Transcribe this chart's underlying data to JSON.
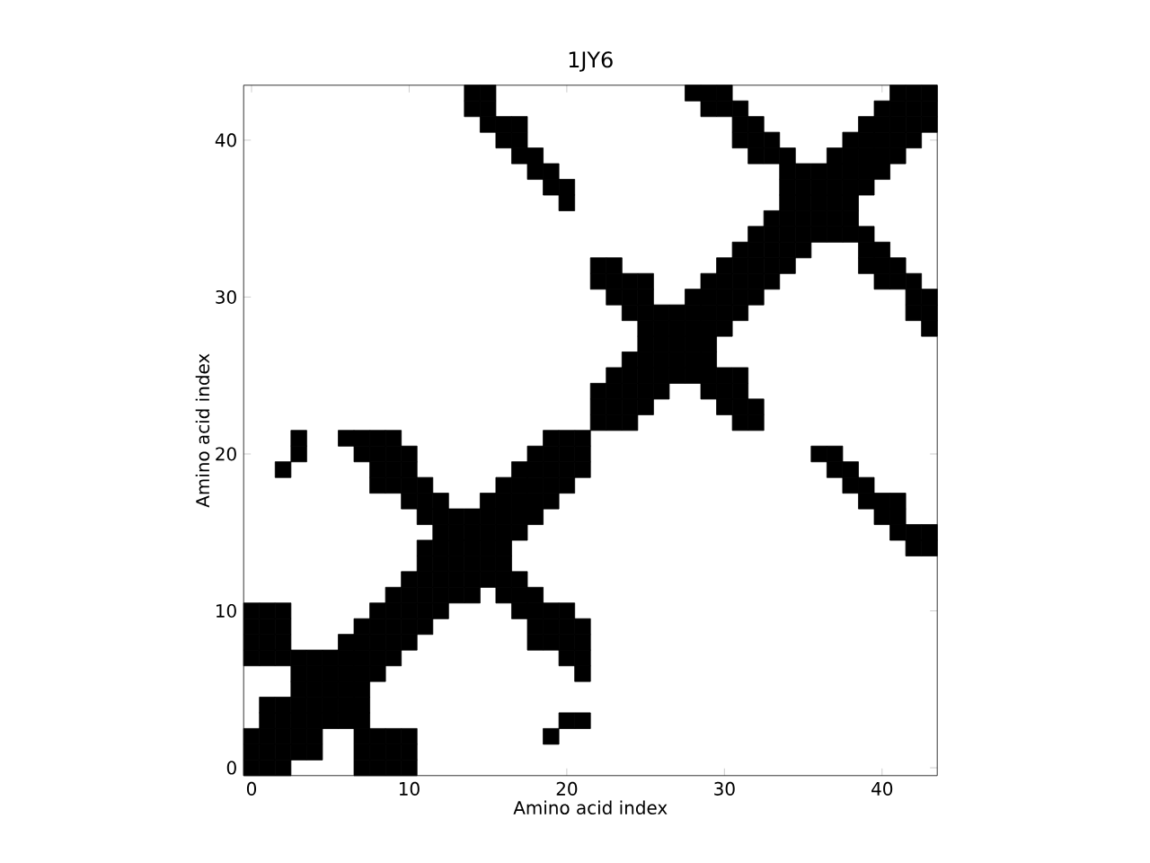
{
  "chart_data": {
    "type": "scatter",
    "title": "1JY6",
    "xlabel": "Amino acid index",
    "ylabel": "Amino acid index",
    "marker": "square",
    "xlim": [
      -0.5,
      43.5
    ],
    "ylim": [
      -0.5,
      43.5
    ],
    "xticks": [
      0,
      10,
      20,
      30,
      40
    ],
    "yticks": [
      0,
      10,
      20,
      30,
      40
    ],
    "grid": false,
    "series": [
      {
        "color": "#000000",
        "x": [
          0,
          1,
          2,
          7,
          8,
          9,
          10
        ],
        "values": [
          0,
          0,
          0,
          0,
          0,
          0,
          0
        ]
      },
      {
        "color": "#000000",
        "x": [
          0,
          1,
          2,
          3,
          4,
          7,
          8,
          9,
          10
        ],
        "values": [
          1,
          1,
          1,
          1,
          1,
          1,
          1,
          1,
          1
        ]
      },
      {
        "color": "#000000",
        "x": [
          0,
          1,
          2,
          3,
          4,
          7,
          8,
          9,
          10,
          19
        ],
        "values": [
          2,
          2,
          2,
          2,
          2,
          2,
          2,
          2,
          2,
          2
        ]
      },
      {
        "color": "#000000",
        "x": [
          1,
          2,
          3,
          4,
          5,
          6,
          7,
          20,
          21
        ],
        "values": [
          3,
          3,
          3,
          3,
          3,
          3,
          3,
          3,
          3
        ]
      },
      {
        "color": "#000000",
        "x": [
          1,
          2,
          3,
          4,
          5,
          6,
          7
        ],
        "values": [
          4,
          4,
          4,
          4,
          4,
          4,
          4
        ]
      },
      {
        "color": "#000000",
        "x": [
          3,
          4,
          5,
          6,
          7
        ],
        "values": [
          5,
          5,
          5,
          5,
          5
        ]
      },
      {
        "color": "#000000",
        "x": [
          3,
          4,
          5,
          6,
          7,
          8,
          21
        ],
        "values": [
          6,
          6,
          6,
          6,
          6,
          6,
          6
        ]
      },
      {
        "color": "#000000",
        "x": [
          0,
          1,
          2,
          3,
          4,
          5,
          6,
          7,
          8,
          9,
          20,
          21
        ],
        "values": [
          7,
          7,
          7,
          7,
          7,
          7,
          7,
          7,
          7,
          7,
          7,
          7
        ]
      },
      {
        "color": "#000000",
        "x": [
          0,
          1,
          2,
          6,
          7,
          8,
          9,
          10,
          18,
          19,
          20,
          21
        ],
        "values": [
          8,
          8,
          8,
          8,
          8,
          8,
          8,
          8,
          8,
          8,
          8,
          8
        ]
      },
      {
        "color": "#000000",
        "x": [
          0,
          1,
          2,
          7,
          8,
          9,
          10,
          11,
          18,
          19,
          20,
          21
        ],
        "values": [
          9,
          9,
          9,
          9,
          9,
          9,
          9,
          9,
          9,
          9,
          9,
          9
        ]
      },
      {
        "color": "#000000",
        "x": [
          0,
          1,
          2,
          8,
          9,
          10,
          11,
          12,
          17,
          18,
          19,
          20
        ],
        "values": [
          10,
          10,
          10,
          10,
          10,
          10,
          10,
          10,
          10,
          10,
          10,
          10
        ]
      },
      {
        "color": "#000000",
        "x": [
          9,
          10,
          11,
          12,
          13,
          14,
          16,
          17,
          18
        ],
        "values": [
          11,
          11,
          11,
          11,
          11,
          11,
          11,
          11,
          11
        ]
      },
      {
        "color": "#000000",
        "x": [
          10,
          11,
          12,
          13,
          14,
          15,
          16,
          17
        ],
        "values": [
          12,
          12,
          12,
          12,
          12,
          12,
          12,
          12
        ]
      },
      {
        "color": "#000000",
        "x": [
          11,
          12,
          13,
          14,
          15,
          16
        ],
        "values": [
          13,
          13,
          13,
          13,
          13,
          13
        ]
      },
      {
        "color": "#000000",
        "x": [
          11,
          12,
          13,
          14,
          15,
          16,
          42,
          43
        ],
        "values": [
          14,
          14,
          14,
          14,
          14,
          14,
          14,
          14
        ]
      },
      {
        "color": "#000000",
        "x": [
          12,
          13,
          14,
          15,
          16,
          17,
          41,
          42,
          43
        ],
        "values": [
          15,
          15,
          15,
          15,
          15,
          15,
          15,
          15,
          15
        ]
      },
      {
        "color": "#000000",
        "x": [
          11,
          12,
          13,
          14,
          15,
          16,
          17,
          18,
          40,
          41
        ],
        "values": [
          16,
          16,
          16,
          16,
          16,
          16,
          16,
          16,
          16,
          16
        ]
      },
      {
        "color": "#000000",
        "x": [
          10,
          11,
          12,
          15,
          16,
          17,
          18,
          19,
          39,
          40,
          41
        ],
        "values": [
          17,
          17,
          17,
          17,
          17,
          17,
          17,
          17,
          17,
          17,
          17
        ]
      },
      {
        "color": "#000000",
        "x": [
          8,
          9,
          10,
          11,
          16,
          17,
          18,
          19,
          20,
          38,
          39
        ],
        "values": [
          18,
          18,
          18,
          18,
          18,
          18,
          18,
          18,
          18,
          18,
          18
        ]
      },
      {
        "color": "#000000",
        "x": [
          2,
          8,
          9,
          10,
          17,
          18,
          19,
          20,
          21,
          37,
          38
        ],
        "values": [
          19,
          19,
          19,
          19,
          19,
          19,
          19,
          19,
          19,
          19,
          19
        ]
      },
      {
        "color": "#000000",
        "x": [
          3,
          7,
          8,
          9,
          10,
          18,
          19,
          20,
          21,
          36,
          37
        ],
        "values": [
          20,
          20,
          20,
          20,
          20,
          20,
          20,
          20,
          20,
          20,
          20
        ]
      },
      {
        "color": "#000000",
        "x": [
          3,
          6,
          7,
          8,
          9,
          19,
          20,
          21
        ],
        "values": [
          21,
          21,
          21,
          21,
          21,
          21,
          21,
          21
        ]
      },
      {
        "color": "#000000",
        "x": [
          22,
          23,
          24,
          31,
          32
        ],
        "values": [
          22,
          22,
          22,
          22,
          22
        ]
      },
      {
        "color": "#000000",
        "x": [
          22,
          23,
          24,
          25,
          30,
          31,
          32
        ],
        "values": [
          23,
          23,
          23,
          23,
          23,
          23,
          23
        ]
      },
      {
        "color": "#000000",
        "x": [
          22,
          23,
          24,
          25,
          26,
          29,
          30,
          31
        ],
        "values": [
          24,
          24,
          24,
          24,
          24,
          24,
          24,
          24
        ]
      },
      {
        "color": "#000000",
        "x": [
          23,
          24,
          25,
          26,
          27,
          28,
          29,
          30,
          31
        ],
        "values": [
          25,
          25,
          25,
          25,
          25,
          25,
          25,
          25,
          25
        ]
      },
      {
        "color": "#000000",
        "x": [
          24,
          25,
          26,
          27,
          28,
          29
        ],
        "values": [
          26,
          26,
          26,
          26,
          26,
          26
        ]
      },
      {
        "color": "#000000",
        "x": [
          25,
          26,
          27,
          28,
          29
        ],
        "values": [
          27,
          27,
          27,
          27,
          27
        ]
      },
      {
        "color": "#000000",
        "x": [
          25,
          26,
          27,
          28,
          29,
          30,
          43
        ],
        "values": [
          28,
          28,
          28,
          28,
          28,
          28,
          28
        ]
      },
      {
        "color": "#000000",
        "x": [
          24,
          25,
          26,
          27,
          28,
          29,
          30,
          31,
          42,
          43
        ],
        "values": [
          29,
          29,
          29,
          29,
          29,
          29,
          29,
          29,
          29,
          29
        ]
      },
      {
        "color": "#000000",
        "x": [
          23,
          24,
          25,
          28,
          29,
          30,
          31,
          32,
          42,
          43
        ],
        "values": [
          30,
          30,
          30,
          30,
          30,
          30,
          30,
          30,
          30,
          30
        ]
      },
      {
        "color": "#000000",
        "x": [
          22,
          23,
          24,
          25,
          29,
          30,
          31,
          32,
          33,
          40,
          41,
          42
        ],
        "values": [
          31,
          31,
          31,
          31,
          31,
          31,
          31,
          31,
          31,
          31,
          31,
          31
        ]
      },
      {
        "color": "#000000",
        "x": [
          22,
          23,
          30,
          31,
          32,
          33,
          34,
          39,
          40,
          41
        ],
        "values": [
          32,
          32,
          32,
          32,
          32,
          32,
          32,
          32,
          32,
          32
        ]
      },
      {
        "color": "#000000",
        "x": [
          31,
          32,
          33,
          34,
          35,
          39,
          40
        ],
        "values": [
          33,
          33,
          33,
          33,
          33,
          33,
          33
        ]
      },
      {
        "color": "#000000",
        "x": [
          32,
          33,
          34,
          35,
          36,
          37,
          38,
          39
        ],
        "values": [
          34,
          34,
          34,
          34,
          34,
          34,
          34,
          34
        ]
      },
      {
        "color": "#000000",
        "x": [
          33,
          34,
          35,
          36,
          37,
          38
        ],
        "values": [
          35,
          35,
          35,
          35,
          35,
          35
        ]
      },
      {
        "color": "#000000",
        "x": [
          20,
          34,
          35,
          36,
          37,
          38
        ],
        "values": [
          36,
          36,
          36,
          36,
          36,
          36
        ]
      },
      {
        "color": "#000000",
        "x": [
          19,
          20,
          34,
          35,
          36,
          37,
          38,
          39
        ],
        "values": [
          37,
          37,
          37,
          37,
          37,
          37,
          37,
          37
        ]
      },
      {
        "color": "#000000",
        "x": [
          18,
          19,
          34,
          35,
          36,
          37,
          38,
          39,
          40
        ],
        "values": [
          38,
          38,
          38,
          38,
          38,
          38,
          38,
          38,
          38
        ]
      },
      {
        "color": "#000000",
        "x": [
          17,
          18,
          32,
          33,
          34,
          37,
          38,
          39,
          40,
          41
        ],
        "values": [
          39,
          39,
          39,
          39,
          39,
          39,
          39,
          39,
          39,
          39
        ]
      },
      {
        "color": "#000000",
        "x": [
          16,
          17,
          31,
          32,
          33,
          38,
          39,
          40,
          41,
          42
        ],
        "values": [
          40,
          40,
          40,
          40,
          40,
          40,
          40,
          40,
          40,
          40
        ]
      },
      {
        "color": "#000000",
        "x": [
          15,
          16,
          17,
          31,
          32,
          39,
          40,
          41,
          42,
          43
        ],
        "values": [
          41,
          41,
          41,
          41,
          41,
          41,
          41,
          41,
          41,
          41
        ]
      },
      {
        "color": "#000000",
        "x": [
          14,
          15,
          29,
          30,
          31,
          40,
          41,
          42,
          43
        ],
        "values": [
          42,
          42,
          42,
          42,
          42,
          42,
          42,
          42,
          42
        ]
      },
      {
        "color": "#000000",
        "x": [
          14,
          15,
          28,
          29,
          30,
          41,
          42,
          43
        ],
        "values": [
          43,
          43,
          43,
          43,
          43,
          43,
          43,
          43
        ]
      }
    ]
  }
}
